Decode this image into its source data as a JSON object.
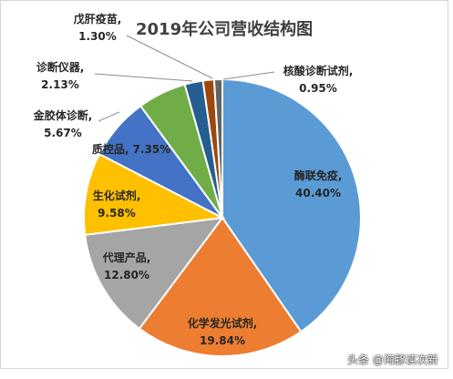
{
  "chart_data": {
    "type": "pie",
    "title": "2019年公司营收结构图",
    "slices": [
      {
        "name": "酶联免疫",
        "value": 40.4,
        "label": "40.40%",
        "color": "#5b9bd5"
      },
      {
        "name": "化学发光试剂",
        "value": 19.84,
        "label": "19.84%",
        "color": "#ed7d31"
      },
      {
        "name": "代理产品",
        "value": 12.8,
        "label": "12.80%",
        "color": "#a5a5a5"
      },
      {
        "name": "生化试剂",
        "value": 9.58,
        "label": "9.58%",
        "color": "#ffc000"
      },
      {
        "name": "质控品",
        "value": 7.35,
        "label": "7.35%",
        "color": "#4472c4"
      },
      {
        "name": "金胶体诊断",
        "value": 5.67,
        "label": "5.67%",
        "color": "#70ad47"
      },
      {
        "name": "诊断仪器",
        "value": 2.13,
        "label": "2.13%",
        "color": "#255e91"
      },
      {
        "name": "戊肝疫苗",
        "value": 1.3,
        "label": "1.30%",
        "color": "#9e480e"
      },
      {
        "name": "核酸诊断试剂",
        "value": 0.95,
        "label": "0.95%",
        "color": "#636363"
      }
    ]
  },
  "watermark": "头条 @海豚读次新"
}
